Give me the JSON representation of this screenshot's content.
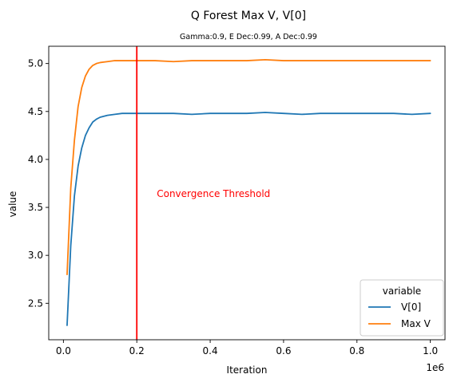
{
  "chart_data": {
    "type": "line",
    "title": "Q Forest Max V, V[0]",
    "subtitle": "Gamma:0.9, E Dec:0.99, A Dec:0.99",
    "xlabel": "Iteration",
    "ylabel": "value",
    "x_offset_label": "1e6",
    "xlim": [
      -0.04,
      1.04
    ],
    "ylim": [
      2.12,
      5.18
    ],
    "xticks": [
      0.0,
      0.2,
      0.4,
      0.6,
      0.8,
      1.0
    ],
    "xtick_labels": [
      "0.0",
      "0.2",
      "0.4",
      "0.6",
      "0.8",
      "1.0"
    ],
    "yticks": [
      2.5,
      3.0,
      3.5,
      4.0,
      4.5,
      5.0
    ],
    "ytick_labels": [
      "2.5",
      "3.0",
      "3.5",
      "4.0",
      "4.5",
      "5.0"
    ],
    "grid": false,
    "legend": {
      "title": "variable",
      "placement": "lower-right"
    },
    "threshold": {
      "x": 0.2,
      "label": "Convergence Threshold",
      "label_y": 3.64,
      "color": "#ff0000"
    },
    "series": [
      {
        "name": "V[0]",
        "color": "#1f77b4",
        "x": [
          0.01,
          0.02,
          0.03,
          0.04,
          0.05,
          0.06,
          0.07,
          0.08,
          0.09,
          0.1,
          0.12,
          0.14,
          0.16,
          0.18,
          0.2,
          0.25,
          0.3,
          0.35,
          0.4,
          0.45,
          0.5,
          0.55,
          0.6,
          0.65,
          0.7,
          0.75,
          0.8,
          0.85,
          0.9,
          0.95,
          1.0
        ],
        "values": [
          2.27,
          3.1,
          3.62,
          3.93,
          4.12,
          4.25,
          4.33,
          4.39,
          4.42,
          4.44,
          4.46,
          4.47,
          4.48,
          4.48,
          4.48,
          4.48,
          4.48,
          4.47,
          4.48,
          4.48,
          4.48,
          4.49,
          4.48,
          4.47,
          4.48,
          4.48,
          4.48,
          4.48,
          4.48,
          4.47,
          4.48
        ]
      },
      {
        "name": "Max V",
        "color": "#ff7f0e",
        "x": [
          0.01,
          0.02,
          0.03,
          0.04,
          0.05,
          0.06,
          0.07,
          0.08,
          0.09,
          0.1,
          0.12,
          0.14,
          0.16,
          0.18,
          0.2,
          0.25,
          0.3,
          0.35,
          0.4,
          0.45,
          0.5,
          0.55,
          0.6,
          0.65,
          0.7,
          0.75,
          0.8,
          0.85,
          0.9,
          0.95,
          1.0
        ],
        "values": [
          2.8,
          3.7,
          4.2,
          4.55,
          4.75,
          4.87,
          4.94,
          4.98,
          5.0,
          5.01,
          5.02,
          5.03,
          5.03,
          5.03,
          5.03,
          5.03,
          5.02,
          5.03,
          5.03,
          5.03,
          5.03,
          5.04,
          5.03,
          5.03,
          5.03,
          5.03,
          5.03,
          5.03,
          5.03,
          5.03,
          5.03
        ]
      }
    ]
  }
}
